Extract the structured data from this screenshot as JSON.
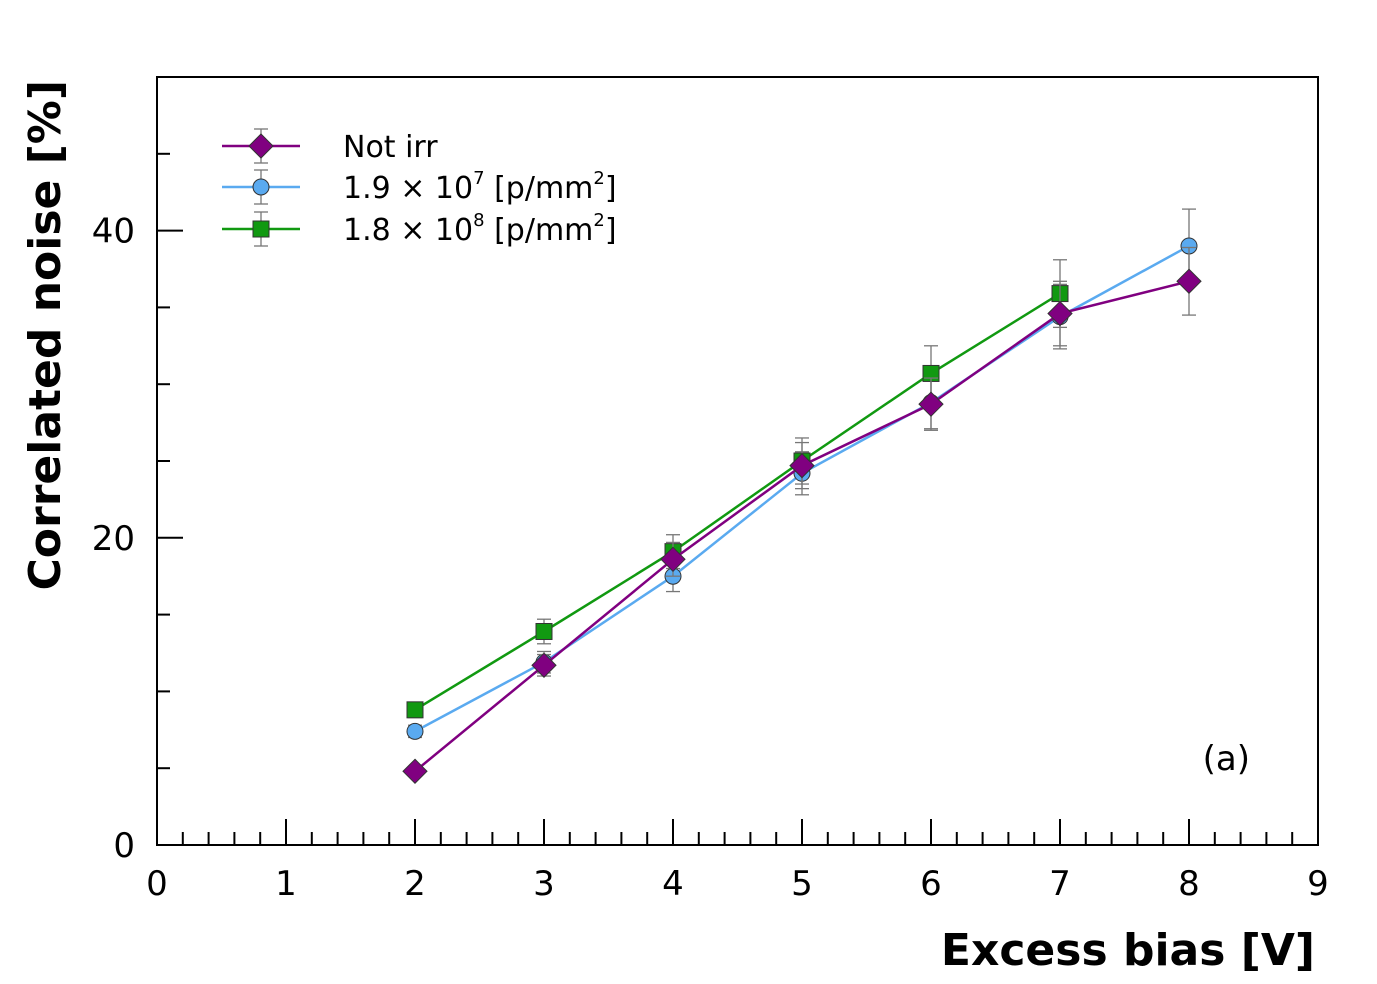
{
  "chart_data": {
    "type": "line",
    "title": "",
    "xlabel": "Excess bias [V]",
    "ylabel": "Correlated noise [%]",
    "xlim": [
      0,
      9
    ],
    "ylim": [
      0,
      50
    ],
    "xticks": [
      0,
      1,
      2,
      3,
      4,
      5,
      6,
      7,
      8,
      9
    ],
    "yticks": [
      0,
      20,
      40
    ],
    "grid": false,
    "legend_position": "top-left",
    "annotation": "(a)",
    "series": [
      {
        "name": "Not irr",
        "name_parts": [
          "Not irr"
        ],
        "color": "#800080",
        "marker": "diamond",
        "x": [
          2,
          3,
          4,
          5,
          6,
          7,
          8
        ],
        "y": [
          4.8,
          11.7,
          18.6,
          24.7,
          28.7,
          34.6,
          36.7
        ],
        "yerr": [
          0.3,
          0.7,
          1.1,
          1.5,
          1.7,
          2.1,
          2.2
        ]
      },
      {
        "name": "1.9 × 10^7 [p/mm^2]",
        "name_parts": [
          "1.9 × 10",
          "7",
          " [p/mm",
          "2",
          "]"
        ],
        "color": "#5aaaf0",
        "marker": "circle",
        "x": [
          2,
          3,
          4,
          5,
          6,
          7,
          8
        ],
        "y": [
          7.4,
          11.9,
          17.5,
          24.2,
          28.8,
          34.4,
          39.0
        ],
        "yerr": [
          0.4,
          0.7,
          1.0,
          1.4,
          1.7,
          2.1,
          2.4
        ]
      },
      {
        "name": "1.8 × 10^8 [p/mm^2]",
        "name_parts": [
          "1.8 × 10",
          "8",
          " [p/mm",
          "2",
          "]"
        ],
        "color": "#119911",
        "marker": "square",
        "x": [
          2,
          3,
          4,
          5,
          6,
          7
        ],
        "y": [
          8.8,
          13.9,
          19.1,
          25.0,
          30.7,
          35.9
        ],
        "yerr": [
          0.5,
          0.8,
          1.1,
          1.5,
          1.8,
          2.2
        ]
      }
    ]
  }
}
